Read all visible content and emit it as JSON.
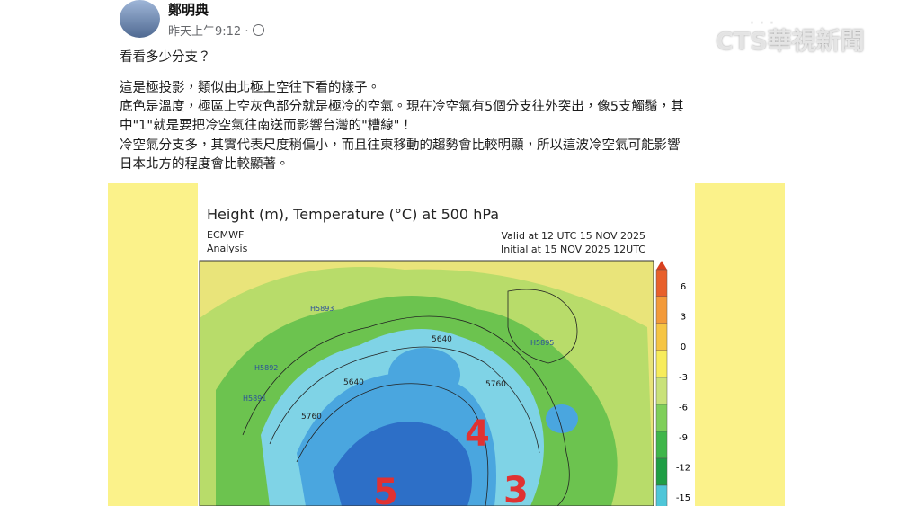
{
  "post": {
    "author": "鄭明典",
    "time": "昨天上午9:12 ·",
    "lines": [
      "看看多少分支？",
      "這是極投影，類似由北極上空往下看的樣子。",
      "底色是溫度，極區上空灰色部分就是極冷的空氣。現在冷空氣有5個分支往外突出，像5支觸鬚，其",
      "中\"1\"就是要把冷空氣往南送而影響台灣的\"槽線\"！",
      "冷空氣分支多，其實代表尺度稍偏小，而且往東移動的趨勢會比較明顯，所以這波冷空氣可能影響",
      "日本北方的程度會比較顯著。"
    ]
  },
  "logo": "CTS華視新聞",
  "figure": {
    "title": "Height (m), Temperature (°C) at 500 hPa",
    "source": "ECMWF",
    "kind": "Analysis",
    "valid": "Valid at 12 UTC 15 NOV 2025",
    "initial": "Initial at 15 NOV 2025 12UTC",
    "colorbar": [
      "6",
      "3",
      "0",
      "-3",
      "-6",
      "-9",
      "-12",
      "-15"
    ],
    "map_labels": [
      "H5893",
      "H5892",
      "H5891",
      "5640",
      "5640",
      "5760",
      "H5895",
      "5760"
    ],
    "branch_numbers": [
      "4",
      "5",
      "3"
    ]
  }
}
